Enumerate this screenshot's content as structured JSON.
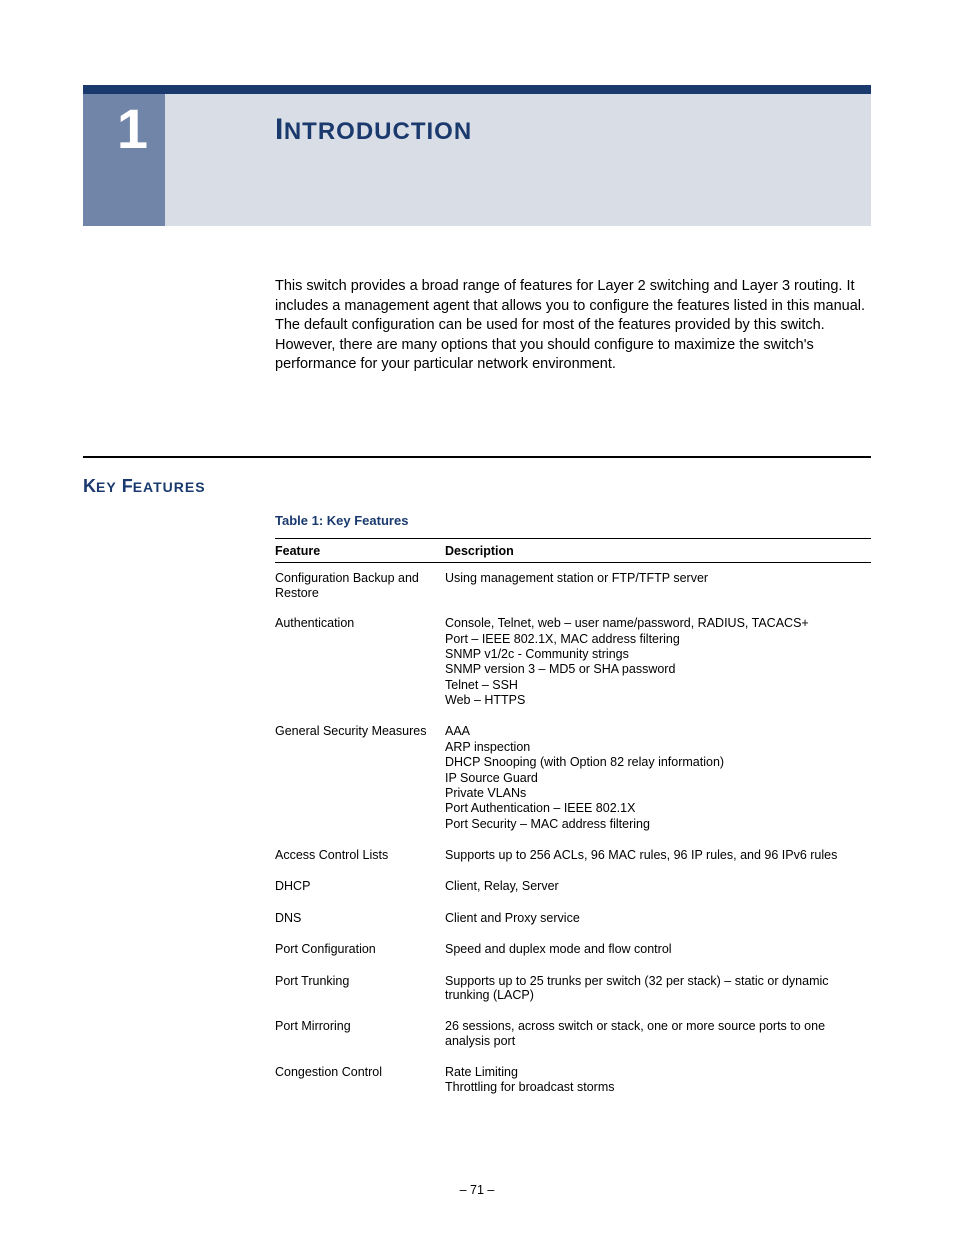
{
  "chapter": {
    "number": "1",
    "title_first": "I",
    "title_rest": "NTRODUCTION"
  },
  "intro": "This switch provides a broad range of features for Layer 2 switching and Layer 3 routing. It includes a management agent that allows you to configure the features listed in this manual. The default configuration can be used for most of the features provided by this switch. However, there are many options that you should configure to maximize the switch's performance for your particular network environment.",
  "section": {
    "first": "K",
    "rest1": "EY",
    "sp": " ",
    "first2": "F",
    "rest2": "EATURES"
  },
  "table": {
    "caption": "Table 1: Key Features",
    "headers": {
      "feature": "Feature",
      "desc": "Description"
    },
    "rows": [
      {
        "feature": "Configuration Backup and Restore",
        "desc": [
          "Using management station or FTP/TFTP server"
        ]
      },
      {
        "feature": "Authentication",
        "desc": [
          "Console, Telnet, web – user name/password, RADIUS, TACACS+",
          "Port – IEEE 802.1X, MAC address filtering",
          "SNMP v1/2c - Community strings",
          "SNMP version 3 – MD5 or SHA password",
          "Telnet – SSH",
          "Web – HTTPS"
        ]
      },
      {
        "feature": "General Security Measures",
        "desc": [
          "AAA",
          "ARP inspection",
          "DHCP Snooping (with Option 82 relay information)",
          "IP Source Guard",
          "Private VLANs",
          "Port Authentication – IEEE 802.1X",
          "Port Security – MAC address filtering"
        ]
      },
      {
        "feature": "Access Control Lists",
        "desc": [
          "Supports up to 256 ACLs, 96 MAC rules, 96 IP rules, and 96 IPv6 rules"
        ]
      },
      {
        "feature": "DHCP",
        "desc": [
          "Client, Relay, Server"
        ]
      },
      {
        "feature": "DNS",
        "desc": [
          "Client and Proxy service"
        ]
      },
      {
        "feature": "Port Configuration",
        "desc": [
          "Speed and duplex mode and flow control"
        ]
      },
      {
        "feature": "Port Trunking",
        "desc": [
          "Supports up to 25 trunks per switch (32 per stack) – static or dynamic trunking (LACP)"
        ]
      },
      {
        "feature": "Port Mirroring",
        "desc": [
          "26 sessions, across switch or stack, one or more source ports to one analysis port"
        ]
      },
      {
        "feature": "Congestion Control",
        "desc": [
          "Rate Limiting",
          "Throttling for broadcast storms"
        ]
      }
    ]
  },
  "page": "– 71 –",
  "colors": {
    "brand_dark": "#1a3a6e",
    "sidebar_box": "#7085a8",
    "header_bg": "#d9dde6"
  }
}
